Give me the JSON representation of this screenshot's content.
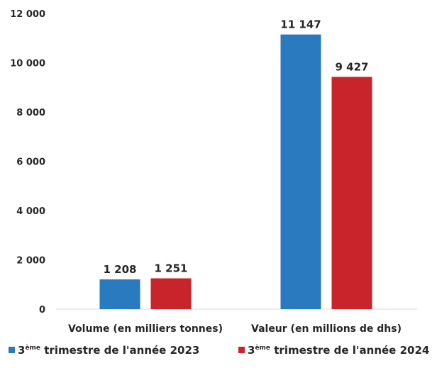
{
  "chart_data": {
    "type": "bar",
    "categories": [
      "Volume (en milliers tonnes)",
      "Valeur (en millions de dhs)"
    ],
    "series": [
      {
        "name_prefix": "3",
        "name_sup": "ème",
        "name_rest": " trimestre de l'année 2023",
        "values": [
          1208,
          11147
        ],
        "labels": [
          "1 208",
          "11 147"
        ],
        "color": "#2a7abf"
      },
      {
        "name_prefix": "3",
        "name_sup": "ème",
        "name_rest": " trimestre de l'année 2024",
        "values": [
          1251,
          9427
        ],
        "labels": [
          "1 251",
          "9 427"
        ],
        "color": "#c9242b"
      }
    ],
    "ylim": [
      0,
      12000
    ],
    "yticks": [
      {
        "value": 0,
        "label": "0"
      },
      {
        "value": 2000,
        "label": "2 000"
      },
      {
        "value": 4000,
        "label": "4 000"
      },
      {
        "value": 6000,
        "label": "6 000"
      },
      {
        "value": 8000,
        "label": "8 000"
      },
      {
        "value": 10000,
        "label": "10 000"
      },
      {
        "value": 12000,
        "label": "12 000"
      }
    ],
    "grid": false,
    "legend": "bottom"
  }
}
